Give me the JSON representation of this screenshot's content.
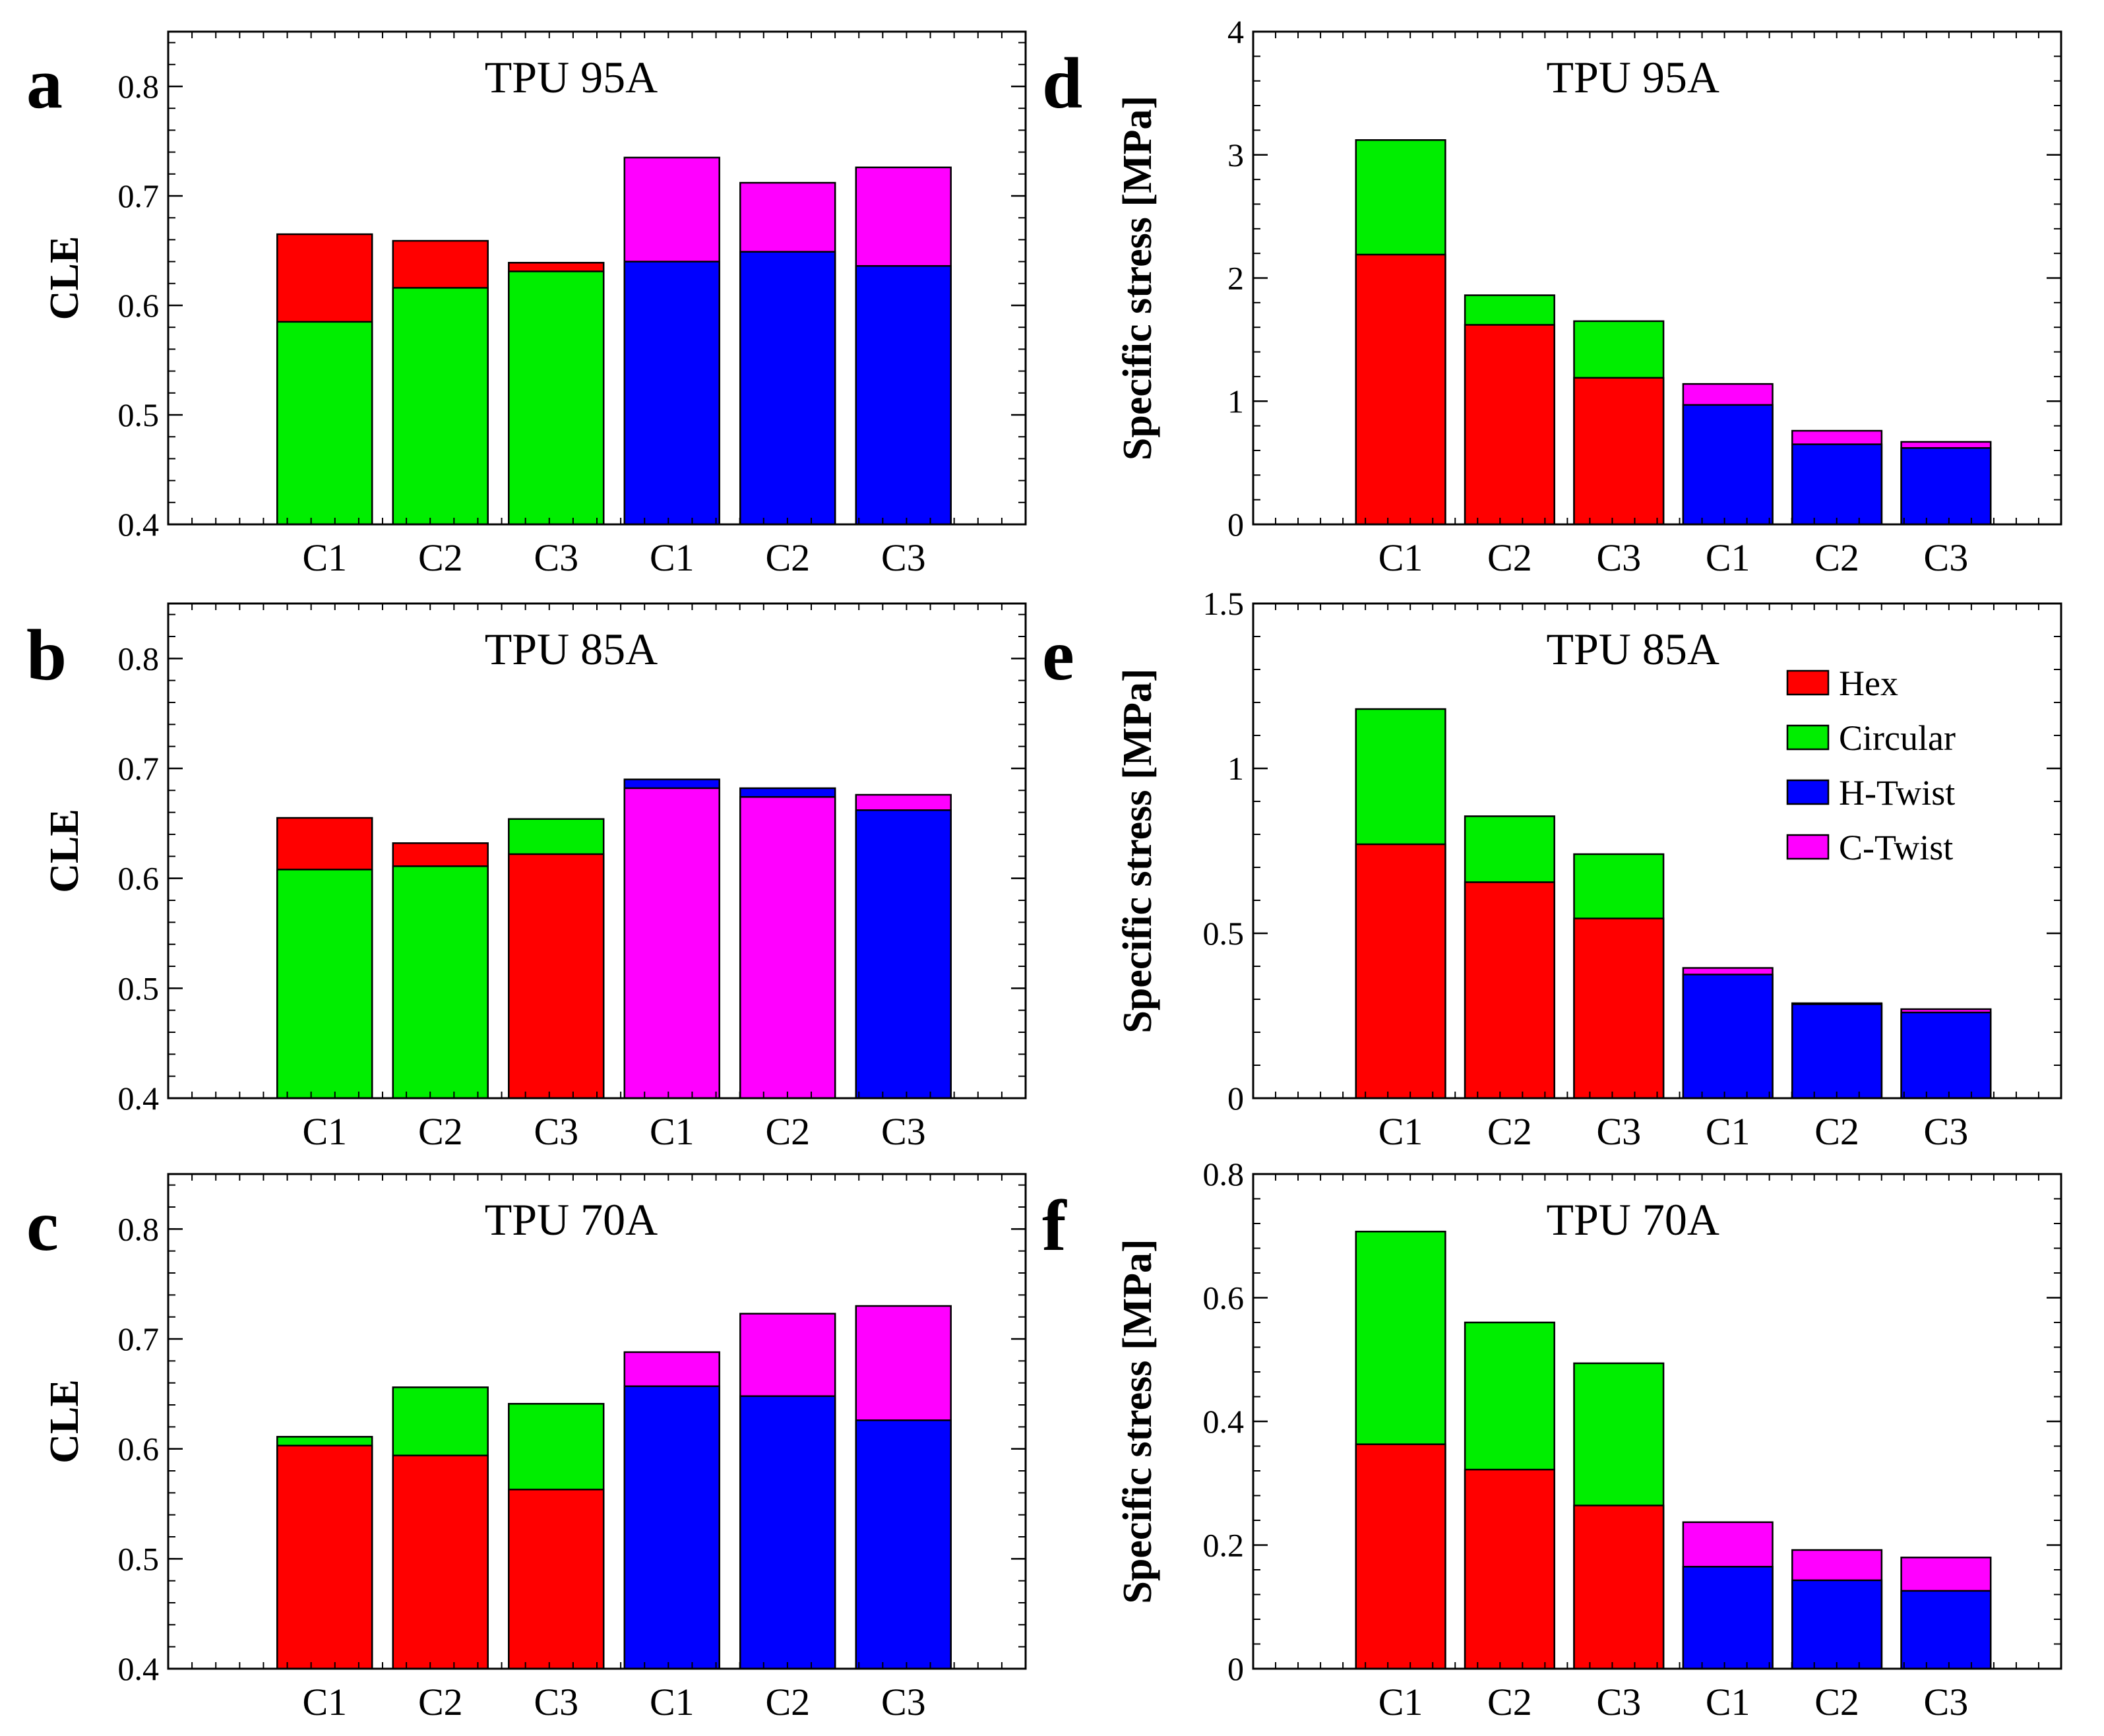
{
  "figure": {
    "colors": {
      "Hex": "#ff0000",
      "Circular": "#00ee00",
      "H-Twist": "#0000ff",
      "C-Twist": "#ff00ff"
    },
    "legend": {
      "placement": "panel e, top-right",
      "entries": [
        {
          "name": "Hex",
          "color": "#ff0000"
        },
        {
          "name": "Circular",
          "color": "#00ee00"
        },
        {
          "name": "H-Twist",
          "color": "#0000ff"
        },
        {
          "name": "C-Twist",
          "color": "#ff00ff"
        }
      ]
    }
  },
  "chart_data": [
    {
      "panel": "a",
      "type": "bar",
      "title": "TPU 95A",
      "ylabel": "CLE",
      "xlabel": "",
      "ylim": [
        0.4,
        0.85
      ],
      "yticks": [
        "0.4",
        "0.5",
        "0.6",
        "0.7",
        "0.8"
      ],
      "categories": [
        "C1",
        "C2",
        "C3",
        "C1",
        "C2",
        "C3"
      ],
      "bars": [
        {
          "category": "C1",
          "segments": [
            {
              "series": "Circular",
              "value": 0.585
            },
            {
              "series": "Hex",
              "value": 0.665
            }
          ]
        },
        {
          "category": "C2",
          "segments": [
            {
              "series": "Circular",
              "value": 0.616
            },
            {
              "series": "Hex",
              "value": 0.659
            }
          ]
        },
        {
          "category": "C3",
          "segments": [
            {
              "series": "Circular",
              "value": 0.631
            },
            {
              "series": "Hex",
              "value": 0.639
            }
          ]
        },
        {
          "category": "C1",
          "segments": [
            {
              "series": "H-Twist",
              "value": 0.64
            },
            {
              "series": "C-Twist",
              "value": 0.735
            }
          ]
        },
        {
          "category": "C2",
          "segments": [
            {
              "series": "H-Twist",
              "value": 0.649
            },
            {
              "series": "C-Twist",
              "value": 0.712
            }
          ]
        },
        {
          "category": "C3",
          "segments": [
            {
              "series": "H-Twist",
              "value": 0.636
            },
            {
              "series": "C-Twist",
              "value": 0.726
            }
          ]
        }
      ]
    },
    {
      "panel": "b",
      "type": "bar",
      "title": "TPU 85A",
      "ylabel": "CLE",
      "xlabel": "",
      "ylim": [
        0.4,
        0.85
      ],
      "yticks": [
        "0.4",
        "0.5",
        "0.6",
        "0.7",
        "0.8"
      ],
      "categories": [
        "C1",
        "C2",
        "C3",
        "C1",
        "C2",
        "C3"
      ],
      "bars": [
        {
          "category": "C1",
          "segments": [
            {
              "series": "Circular",
              "value": 0.608
            },
            {
              "series": "Hex",
              "value": 0.655
            }
          ]
        },
        {
          "category": "C2",
          "segments": [
            {
              "series": "Circular",
              "value": 0.611
            },
            {
              "series": "Hex",
              "value": 0.632
            }
          ]
        },
        {
          "category": "C3",
          "segments": [
            {
              "series": "Hex",
              "value": 0.622
            },
            {
              "series": "Circular",
              "value": 0.654
            }
          ]
        },
        {
          "category": "C1",
          "segments": [
            {
              "series": "C-Twist",
              "value": 0.682
            },
            {
              "series": "H-Twist",
              "value": 0.69
            }
          ]
        },
        {
          "category": "C2",
          "segments": [
            {
              "series": "C-Twist",
              "value": 0.674
            },
            {
              "series": "H-Twist",
              "value": 0.682
            }
          ]
        },
        {
          "category": "C3",
          "segments": [
            {
              "series": "H-Twist",
              "value": 0.662
            },
            {
              "series": "C-Twist",
              "value": 0.676
            }
          ]
        }
      ]
    },
    {
      "panel": "c",
      "type": "bar",
      "title": "TPU 70A",
      "ylabel": "CLE",
      "xlabel": "",
      "ylim": [
        0.4,
        0.85
      ],
      "yticks": [
        "0.4",
        "0.5",
        "0.6",
        "0.7",
        "0.8"
      ],
      "categories": [
        "C1",
        "C2",
        "C3",
        "C1",
        "C2",
        "C3"
      ],
      "bars": [
        {
          "category": "C1",
          "segments": [
            {
              "series": "Hex",
              "value": 0.603
            },
            {
              "series": "Circular",
              "value": 0.611
            }
          ]
        },
        {
          "category": "C2",
          "segments": [
            {
              "series": "Hex",
              "value": 0.594
            },
            {
              "series": "Circular",
              "value": 0.656
            }
          ]
        },
        {
          "category": "C3",
          "segments": [
            {
              "series": "Hex",
              "value": 0.563
            },
            {
              "series": "Circular",
              "value": 0.641
            }
          ]
        },
        {
          "category": "C1",
          "segments": [
            {
              "series": "H-Twist",
              "value": 0.657
            },
            {
              "series": "C-Twist",
              "value": 0.688
            }
          ]
        },
        {
          "category": "C2",
          "segments": [
            {
              "series": "H-Twist",
              "value": 0.648
            },
            {
              "series": "C-Twist",
              "value": 0.723
            }
          ]
        },
        {
          "category": "C3",
          "segments": [
            {
              "series": "H-Twist",
              "value": 0.626
            },
            {
              "series": "C-Twist",
              "value": 0.73
            }
          ]
        }
      ]
    },
    {
      "panel": "d",
      "type": "bar",
      "title": "TPU 95A",
      "ylabel": "Specific stress  [MPa]",
      "xlabel": "",
      "ylim": [
        0,
        4
      ],
      "yticks": [
        "0",
        "1",
        "2",
        "3",
        "4"
      ],
      "categories": [
        "C1",
        "C2",
        "C3",
        "C1",
        "C2",
        "C3"
      ],
      "bars": [
        {
          "category": "C1",
          "segments": [
            {
              "series": "Hex",
              "value": 2.19
            },
            {
              "series": "Circular",
              "value": 3.12
            }
          ]
        },
        {
          "category": "C2",
          "segments": [
            {
              "series": "Hex",
              "value": 1.62
            },
            {
              "series": "Circular",
              "value": 1.86
            }
          ]
        },
        {
          "category": "C3",
          "segments": [
            {
              "series": "Hex",
              "value": 1.19
            },
            {
              "series": "Circular",
              "value": 1.65
            }
          ]
        },
        {
          "category": "C1",
          "segments": [
            {
              "series": "H-Twist",
              "value": 0.97
            },
            {
              "series": "C-Twist",
              "value": 1.14
            }
          ]
        },
        {
          "category": "C2",
          "segments": [
            {
              "series": "H-Twist",
              "value": 0.65
            },
            {
              "series": "C-Twist",
              "value": 0.76
            }
          ]
        },
        {
          "category": "C3",
          "segments": [
            {
              "series": "H-Twist",
              "value": 0.62
            },
            {
              "series": "C-Twist",
              "value": 0.67
            }
          ]
        }
      ]
    },
    {
      "panel": "e",
      "type": "bar",
      "title": "TPU 85A",
      "ylabel": "Specific stress  [MPa]",
      "xlabel": "",
      "ylim": [
        0,
        1.5
      ],
      "yticks": [
        "0",
        "0.5",
        "1",
        "1.5"
      ],
      "categories": [
        "C1",
        "C2",
        "C3",
        "C1",
        "C2",
        "C3"
      ],
      "bars": [
        {
          "category": "C1",
          "segments": [
            {
              "series": "Hex",
              "value": 0.77
            },
            {
              "series": "Circular",
              "value": 1.18
            }
          ]
        },
        {
          "category": "C2",
          "segments": [
            {
              "series": "Hex",
              "value": 0.655
            },
            {
              "series": "Circular",
              "value": 0.855
            }
          ]
        },
        {
          "category": "C3",
          "segments": [
            {
              "series": "Hex",
              "value": 0.545
            },
            {
              "series": "Circular",
              "value": 0.74
            }
          ]
        },
        {
          "category": "C1",
          "segments": [
            {
              "series": "H-Twist",
              "value": 0.375
            },
            {
              "series": "C-Twist",
              "value": 0.395
            }
          ]
        },
        {
          "category": "C2",
          "segments": [
            {
              "series": "H-Twist",
              "value": 0.285
            },
            {
              "series": "C-Twist",
              "value": 0.288
            }
          ]
        },
        {
          "category": "C3",
          "segments": [
            {
              "series": "H-Twist",
              "value": 0.26
            },
            {
              "series": "C-Twist",
              "value": 0.27
            }
          ]
        }
      ]
    },
    {
      "panel": "f",
      "type": "bar",
      "title": "TPU 70A",
      "ylabel": "Specific stress  [MPa]",
      "xlabel": "",
      "ylim": [
        0,
        0.8
      ],
      "yticks": [
        "0",
        "0.2",
        "0.4",
        "0.6",
        "0.8"
      ],
      "categories": [
        "C1",
        "C2",
        "C3",
        "C1",
        "C2",
        "C3"
      ],
      "bars": [
        {
          "category": "C1",
          "segments": [
            {
              "series": "Hex",
              "value": 0.363
            },
            {
              "series": "Circular",
              "value": 0.707
            }
          ]
        },
        {
          "category": "C2",
          "segments": [
            {
              "series": "Hex",
              "value": 0.322
            },
            {
              "series": "Circular",
              "value": 0.56
            }
          ]
        },
        {
          "category": "C3",
          "segments": [
            {
              "series": "Hex",
              "value": 0.264
            },
            {
              "series": "Circular",
              "value": 0.494
            }
          ]
        },
        {
          "category": "C1",
          "segments": [
            {
              "series": "H-Twist",
              "value": 0.165
            },
            {
              "series": "C-Twist",
              "value": 0.237
            }
          ]
        },
        {
          "category": "C2",
          "segments": [
            {
              "series": "H-Twist",
              "value": 0.143
            },
            {
              "series": "C-Twist",
              "value": 0.192
            }
          ]
        },
        {
          "category": "C3",
          "segments": [
            {
              "series": "H-Twist",
              "value": 0.126
            },
            {
              "series": "C-Twist",
              "value": 0.18
            }
          ]
        }
      ]
    }
  ]
}
